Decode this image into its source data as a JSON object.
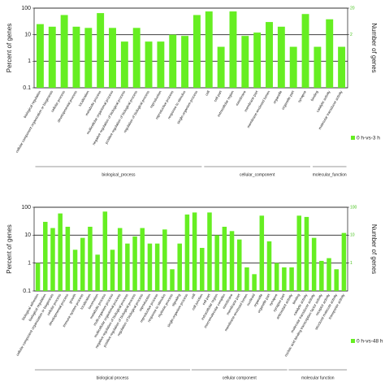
{
  "chart_data": [
    {
      "type": "bar",
      "log_y": true,
      "ylabel": "Percent of genes",
      "y2label": "Number of genes",
      "ylim": [
        0.1,
        100
      ],
      "yticks": [
        0.1,
        1,
        10,
        100
      ],
      "y2lim": [
        0.02,
        20
      ],
      "y2ticks": [
        2,
        20
      ],
      "grid": true,
      "groups": [
        {
          "name": "biological_process",
          "categories": [
            "biological regulation",
            "cellular component organization or biogenesis",
            "cellular process",
            "developmental process",
            "localization",
            "metabolic process",
            "multicellular organismal process",
            "negative regulation of biological process",
            "positive regulation of biological process",
            "regulation of biological process",
            "reproduction",
            "reproductive process",
            "response to stimulus",
            "single-organism process"
          ]
        },
        {
          "name": "cellular_component",
          "categories": [
            "cell",
            "cell part",
            "extracellular region",
            "membrane",
            "membrane part",
            "membrane-enclosed lumen",
            "organelle",
            "organelle part",
            "synapse"
          ]
        },
        {
          "name": "molecular_function",
          "categories": [
            "binding",
            "catalytic activity",
            "molecular transducer activity"
          ]
        }
      ],
      "series": [
        {
          "name": "0 h-vs-3 h",
          "color": "#66ee22",
          "values": [
            25,
            20,
            55,
            20,
            18,
            65,
            18,
            5.5,
            18,
            5.5,
            5.5,
            10,
            9,
            55,
            75,
            3.5,
            75,
            9,
            12,
            30,
            20,
            3.5,
            60,
            3.5,
            38,
            3.5
          ]
        }
      ],
      "legend": "bottom-right"
    },
    {
      "type": "bar",
      "log_y": true,
      "ylabel": "Percent of genes",
      "y2label": "Number of genes",
      "ylim": [
        0.1,
        100
      ],
      "yticks": [
        0.1,
        1,
        10,
        100
      ],
      "y2lim": [
        0.1,
        100
      ],
      "y2ticks": [
        1,
        10,
        100
      ],
      "grid": true,
      "groups": [
        {
          "name": "biological process",
          "categories": [
            "biological adhesion",
            "biological regulation",
            "cellular component organization or biogenesis",
            "cellular process",
            "developmental process",
            "growth",
            "immune system process",
            "localization",
            "locomotion",
            "metabolic process",
            "multi-organism process",
            "multicellular organismal process",
            "negative regulation of biological process",
            "positive regulation of biological process",
            "regulation of biological process",
            "reproduction",
            "reproductive process",
            "response to stimulus",
            "rhythmic process",
            "signaling",
            "single-organism process"
          ]
        },
        {
          "name": "cellular component",
          "categories": [
            "cell",
            "cell junction",
            "cell part",
            "extracellular region",
            "macromolecular complex",
            "membrane",
            "membrane part",
            "membrane-enclosed lumen",
            "nucleoid",
            "organelle",
            "organelle part",
            "synapse",
            "synapse part"
          ]
        },
        {
          "name": "molecular function",
          "categories": [
            "antioxidant activity",
            "binding",
            "catalytic activity",
            "molecular transducer activity",
            "nucleic acid binding transcription factor activity",
            "receptor activity",
            "structural molecule activity",
            "transporter activity"
          ]
        }
      ],
      "series": [
        {
          "name": "0 h-vs-48 h",
          "color": "#66ee22",
          "values": [
            1,
            30,
            18,
            60,
            20,
            3,
            8,
            20,
            2,
            70,
            3,
            18,
            5,
            9,
            18,
            5,
            5,
            16,
            0.6,
            5,
            55,
            65,
            3.5,
            65,
            10,
            20,
            14,
            7,
            0.7,
            0.4,
            50,
            6,
            1,
            0.7,
            0.7,
            50,
            45,
            8,
            1.2,
            1.5,
            0.6,
            12
          ]
        }
      ],
      "legend": "bottom-right"
    }
  ]
}
